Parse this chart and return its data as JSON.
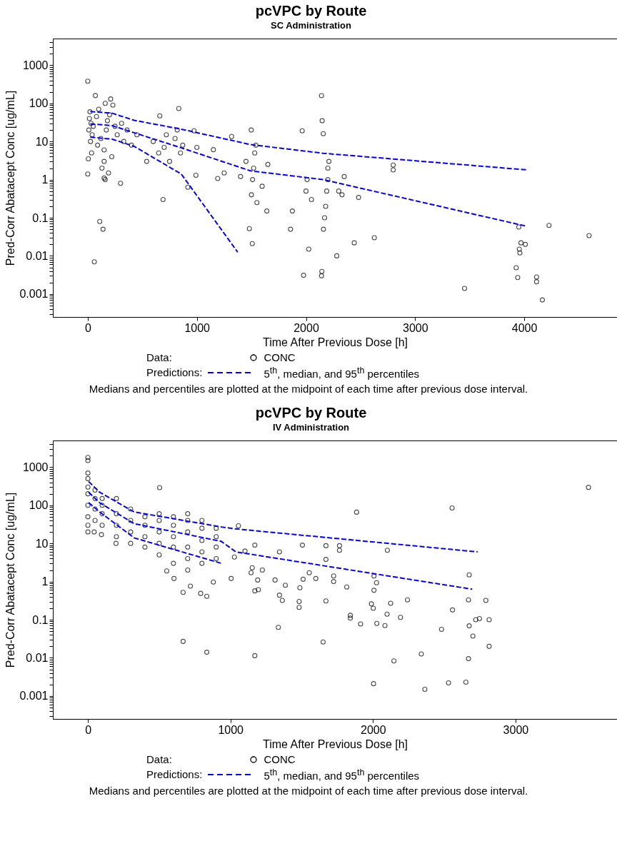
{
  "chart_data": [
    {
      "type": "scatter",
      "title": "pcVPC by Route",
      "subtitle": "SC Administration",
      "xlabel": "Time After Previous Dose [h]",
      "ylabel": "Pred-Corr Abatacept Conc [ug/mL]",
      "log": "y",
      "grid": false,
      "legend": "bottom",
      "xlim": [
        -320,
        4850
      ],
      "xticks": [
        0,
        1000,
        2000,
        3000,
        4000
      ],
      "ylim": [
        0.00025,
        5000
      ],
      "yticks": [
        {
          "value": 0.0003,
          "label": null
        },
        {
          "value": 0.0004,
          "label": null
        },
        {
          "value": 0.0005,
          "label": null
        },
        {
          "value": 0.0006,
          "label": null
        },
        {
          "value": 0.0007,
          "label": null
        },
        {
          "value": 0.0008,
          "label": null
        },
        {
          "value": 0.0009,
          "label": null
        },
        0.001,
        {
          "value": 0.002,
          "label": null
        },
        {
          "value": 0.003,
          "label": null
        },
        {
          "value": 0.004,
          "label": null
        },
        {
          "value": 0.005,
          "label": null
        },
        {
          "value": 0.006,
          "label": null
        },
        {
          "value": 0.007,
          "label": null
        },
        {
          "value": 0.008,
          "label": null
        },
        {
          "value": 0.009,
          "label": null
        },
        0.01,
        {
          "value": 0.02,
          "label": null
        },
        {
          "value": 0.03,
          "label": null
        },
        {
          "value": 0.04,
          "label": null
        },
        {
          "value": 0.05,
          "label": null
        },
        {
          "value": 0.06,
          "label": null
        },
        {
          "value": 0.07,
          "label": null
        },
        {
          "value": 0.08,
          "label": null
        },
        {
          "value": 0.09,
          "label": null
        },
        0.1,
        {
          "value": 0.2,
          "label": null
        },
        {
          "value": 0.3,
          "label": null
        },
        {
          "value": 0.4,
          "label": null
        },
        {
          "value": 0.5,
          "label": null
        },
        {
          "value": 0.6,
          "label": null
        },
        {
          "value": 0.7,
          "label": null
        },
        {
          "value": 0.8,
          "label": null
        },
        {
          "value": 0.9,
          "label": null
        },
        1,
        {
          "value": 2,
          "label": null
        },
        {
          "value": 3,
          "label": null
        },
        {
          "value": 4,
          "label": null
        },
        {
          "value": 5,
          "label": null
        },
        {
          "value": 6,
          "label": null
        },
        {
          "value": 7,
          "label": null
        },
        {
          "value": 8,
          "label": null
        },
        {
          "value": 9,
          "label": null
        },
        10,
        {
          "value": 20,
          "label": null
        },
        {
          "value": 30,
          "label": null
        },
        {
          "value": 40,
          "label": null
        },
        {
          "value": 50,
          "label": null
        },
        {
          "value": 60,
          "label": null
        },
        {
          "value": 70,
          "label": null
        },
        {
          "value": 80,
          "label": null
        },
        {
          "value": 90,
          "label": null
        },
        100,
        {
          "value": 200,
          "label": null
        },
        {
          "value": 300,
          "label": null
        },
        {
          "value": 400,
          "label": null
        },
        {
          "value": 500,
          "label": null
        },
        {
          "value": 600,
          "label": null
        },
        {
          "value": 700,
          "label": null
        },
        {
          "value": 800,
          "label": null
        },
        {
          "value": 900,
          "label": null
        },
        1000,
        {
          "value": 2000,
          "label": null
        },
        {
          "value": 3000,
          "label": null
        },
        {
          "value": 4000,
          "label": null
        }
      ],
      "series": [
        {
          "name": "CONC",
          "marker": "circle",
          "color": "#000000",
          "x": [
            0,
            0,
            5,
            10,
            15,
            20,
            25,
            30,
            35,
            40,
            50,
            60,
            70,
            80,
            90,
            100,
            110,
            120,
            130,
            140,
            150,
            150,
            150,
            160,
            160,
            170,
            180,
            190,
            200,
            210,
            220,
            230,
            250,
            270,
            300,
            310,
            330,
            360,
            400,
            450,
            540,
            600,
            650,
            660,
            690,
            700,
            720,
            750,
            800,
            820,
            834,
            850,
            870,
            917,
            974,
            991,
            1000,
            1151,
            1191,
            1250,
            1318,
            1400,
            1450,
            1481,
            1498,
            1500,
            1510,
            1520,
            1530,
            1540,
            1550,
            1508,
            1598,
            1641,
            1650,
            1858,
            1875,
            1965,
            1978,
            2000,
            2010,
            2025,
            2050,
            2142,
            2142,
            2145,
            2148,
            2158,
            2160,
            2170,
            2180,
            2190,
            2200,
            2200,
            2210,
            2282,
            2300,
            2330,
            2350,
            2442,
            2482,
            2626,
            2799,
            2799,
            3453,
            3926,
            3940,
            3950,
            3955,
            3960,
            3970,
            4010,
            4113,
            4113,
            4166,
            4227,
            4594
          ],
          "values": [
            380,
            1.4,
            3.5,
            20,
            40,
            60,
            10,
            30,
            5,
            15,
            25,
            0.007,
            160,
            45,
            8,
            70,
            0.08,
            12,
            2,
            0.05,
            1.1,
            3,
            6,
            1,
            100,
            20,
            35,
            1.5,
            50,
            130,
            4,
            90,
            25,
            15,
            0.8,
            30,
            10,
            20,
            8,
            15,
            3,
            10,
            5,
            47,
            0.3,
            7,
            15,
            3,
            12,
            20,
            73,
            5,
            8,
            0.63,
            19,
            1.3,
            7,
            6.1,
            1.07,
            1.5,
            13.5,
            1.2,
            3,
            0.052,
            20,
            0.4,
            1,
            2,
            5,
            8,
            0.25,
            0.021,
            0.67,
            0.15,
            2.5,
            0.05,
            0.15,
            19,
            0.0031,
            0.5,
            1,
            0.015,
            0.3,
            159,
            0.003,
            0.0039,
            35,
            16,
            0.05,
            0.1,
            0.2,
            0.5,
            1,
            2,
            3,
            0.01,
            0.5,
            0.4,
            1.2,
            0.022,
            0.34,
            0.03,
            2.4,
            1.8,
            0.0014,
            0.0049,
            0.0027,
            0.057,
            0.015,
            0.012,
            0.022,
            0.02,
            0.0028,
            0.0021,
            0.0007,
            0.063,
            0.034
          ]
        },
        {
          "name": "5$^{th}$, median, and 95$^{th}$ percentiles",
          "type": "line",
          "color": "#0000ff",
          "line_style": "dashed",
          "x": [
            23,
            224,
            424,
            857,
            1491,
            2158,
            4026
          ],
          "values": [
            61,
            55,
            36,
            21,
            8.3,
            4.9,
            1.8
          ]
        },
        {
          "type": "line",
          "color": "#0000ff",
          "line_style": "dashed",
          "x": [
            23,
            224,
            424,
            857,
            1491,
            2158,
            4020
          ],
          "values": [
            29,
            26,
            17,
            6.8,
            1.7,
            1.0,
            0.06
          ]
        },
        {
          "type": "line",
          "color": "#0000ff",
          "line_style": "dashed",
          "x": [
            23,
            224,
            424,
            857,
            1374
          ],
          "values": [
            13,
            11.5,
            7.5,
            1.4,
            0.0125
          ]
        }
      ],
      "annotations": [
        "Data:",
        "Predictions:",
        "Medians and percentiles are plotted at the midpoint of each time after previous dose interval."
      ]
    },
    {
      "type": "scatter",
      "title": "pcVPC by Route",
      "subtitle": "IV Administration",
      "xlabel": "Time After Previous Dose [h]",
      "ylabel": "Pred-Corr Abatacept Conc [ug/mL]",
      "log": "y",
      "grid": false,
      "legend": "bottom",
      "xlim": [
        -246,
        3712
      ],
      "xticks": [
        0,
        1000,
        2000,
        3000
      ],
      "ylim": [
        0.00025,
        5000
      ],
      "yticks": [
        {
          "value": 0.0003,
          "label": null
        },
        {
          "value": 0.0004,
          "label": null
        },
        {
          "value": 0.0005,
          "label": null
        },
        {
          "value": 0.0006,
          "label": null
        },
        {
          "value": 0.0007,
          "label": null
        },
        {
          "value": 0.0008,
          "label": null
        },
        {
          "value": 0.0009,
          "label": null
        },
        0.001,
        {
          "value": 0.002,
          "label": null
        },
        {
          "value": 0.003,
          "label": null
        },
        {
          "value": 0.004,
          "label": null
        },
        {
          "value": 0.005,
          "label": null
        },
        {
          "value": 0.006,
          "label": null
        },
        {
          "value": 0.007,
          "label": null
        },
        {
          "value": 0.008,
          "label": null
        },
        {
          "value": 0.009,
          "label": null
        },
        0.01,
        {
          "value": 0.02,
          "label": null
        },
        {
          "value": 0.03,
          "label": null
        },
        {
          "value": 0.04,
          "label": null
        },
        {
          "value": 0.05,
          "label": null
        },
        {
          "value": 0.06,
          "label": null
        },
        {
          "value": 0.07,
          "label": null
        },
        {
          "value": 0.08,
          "label": null
        },
        {
          "value": 0.09,
          "label": null
        },
        0.1,
        {
          "value": 0.2,
          "label": null
        },
        {
          "value": 0.3,
          "label": null
        },
        {
          "value": 0.4,
          "label": null
        },
        {
          "value": 0.5,
          "label": null
        },
        {
          "value": 0.6,
          "label": null
        },
        {
          "value": 0.7,
          "label": null
        },
        {
          "value": 0.8,
          "label": null
        },
        {
          "value": 0.9,
          "label": null
        },
        1,
        {
          "value": 2,
          "label": null
        },
        {
          "value": 3,
          "label": null
        },
        {
          "value": 4,
          "label": null
        },
        {
          "value": 5,
          "label": null
        },
        {
          "value": 6,
          "label": null
        },
        {
          "value": 7,
          "label": null
        },
        {
          "value": 8,
          "label": null
        },
        {
          "value": 9,
          "label": null
        },
        10,
        {
          "value": 20,
          "label": null
        },
        {
          "value": 30,
          "label": null
        },
        {
          "value": 40,
          "label": null
        },
        {
          "value": 50,
          "label": null
        },
        {
          "value": 60,
          "label": null
        },
        {
          "value": 70,
          "label": null
        },
        {
          "value": 80,
          "label": null
        },
        {
          "value": 90,
          "label": null
        },
        100,
        {
          "value": 200,
          "label": null
        },
        {
          "value": 300,
          "label": null
        },
        {
          "value": 400,
          "label": null
        },
        {
          "value": 500,
          "label": null
        },
        {
          "value": 600,
          "label": null
        },
        {
          "value": 700,
          "label": null
        },
        {
          "value": 800,
          "label": null
        },
        {
          "value": 900,
          "label": null
        },
        1000,
        {
          "value": 2000,
          "label": null
        },
        {
          "value": 3000,
          "label": null
        },
        {
          "value": 4000,
          "label": null
        }
      ],
      "series": [
        {
          "name": "CONC",
          "marker": "circle",
          "color": "#000000",
          "x": [
            0,
            0,
            0,
            0,
            0,
            0,
            0,
            0,
            0,
            0,
            44,
            50,
            50,
            50,
            50,
            95,
            100,
            100,
            100,
            100,
            197,
            200,
            200,
            200,
            200,
            300,
            300,
            300,
            300,
            400,
            400,
            400,
            400,
            500,
            500,
            500,
            500,
            500,
            503,
            553,
            600,
            600,
            600,
            600,
            600,
            604,
            668,
            668,
            700,
            700,
            700,
            700,
            700,
            700,
            719,
            791,
            800,
            800,
            800,
            800,
            800,
            834,
            834,
            880,
            900,
            900,
            900,
            900,
            1005,
            1028,
            1056,
            1102,
            1145,
            1153,
            1171,
            1171,
            1171,
            1191,
            1196,
            1224,
            1313,
            1336,
            1344,
            1344,
            1364,
            1385,
            1482,
            1482,
            1487,
            1505,
            1510,
            1553,
            1599,
            1650,
            1670,
            1670,
            1670,
            1724,
            1724,
            1765,
            1765,
            1816,
            1841,
            1841,
            1885,
            1913,
            1989,
            2002,
            2004,
            2007,
            2007,
            2025,
            2027,
            2084,
            2099,
            2101,
            2124,
            2147,
            2193,
            2242,
            2339,
            2364,
            2481,
            2530,
            2555,
            2558,
            2652,
            2670,
            2670,
            2675,
            2675,
            2701,
            2721,
            2747,
            2792,
            2815,
            2815,
            3512
          ],
          "values": [
            1800,
            1500,
            700,
            500,
            300,
            200,
            100,
            50,
            30,
            20,
            20,
            40,
            80,
            150,
            250,
            17,
            30,
            60,
            100,
            150,
            10,
            15,
            30,
            60,
            150,
            10,
            20,
            40,
            80,
            8,
            15,
            30,
            50,
            5,
            10,
            20,
            40,
            60,
            290,
            1.9,
            3,
            8,
            15,
            30,
            50,
            1.2,
            0.52,
            0.027,
            2,
            4,
            8,
            20,
            40,
            60,
            0.76,
            0.49,
            3,
            6,
            12,
            25,
            40,
            0.41,
            0.014,
            0.97,
            4,
            8,
            15,
            25,
            1.2,
            4.4,
            29,
            6.3,
            1.7,
            2.3,
            0.57,
            9,
            0.0114,
            1.1,
            0.61,
            2,
            1.1,
            0.063,
            6,
            0.44,
            0.32,
            0.8,
            0.3,
            0.21,
            0.69,
            9,
            1.15,
            1.7,
            1.2,
            0.026,
            8.7,
            3.8,
            0.31,
            1.4,
            1,
            8.7,
            6.6,
            0.72,
            0.13,
            0.11,
            66,
            0.077,
            0.26,
            0.2,
            0.0021,
            0.59,
            1.4,
            0.93,
            0.08,
            0.07,
            0.14,
            6.6,
            0.27,
            0.0083,
            0.115,
            0.33,
            0.0126,
            0.0015,
            0.056,
            0.0022,
            85,
            0.18,
            0.0023,
            0.0095,
            0.33,
            1.5,
            0.069,
            0.037,
            0.1,
            0.107,
            0.32,
            0.1,
            0.02,
            295
          ]
        },
        {
          "name": "5$^{th}$, median, and 95$^{th}$ percentiles",
          "type": "line",
          "color": "#0000ff",
          "line_style": "dashed",
          "x": [
            5,
            82,
            324,
            936,
            1038,
            2734
          ],
          "values": [
            420,
            220,
            67,
            27,
            24,
            6.0
          ]
        },
        {
          "type": "line",
          "color": "#0000ff",
          "line_style": "dashed",
          "x": [
            5,
            82,
            324,
            936,
            1038,
            2696
          ],
          "values": [
            220,
            117,
            33,
            11.3,
            6,
            0.63
          ]
        },
        {
          "type": "line",
          "color": "#0000ff",
          "line_style": "dashed",
          "x": [
            5,
            82,
            324,
            936
          ],
          "values": [
            117,
            67,
            14,
            3.0
          ]
        }
      ],
      "annotations": [
        "Data:",
        "Predictions:",
        "Medians and percentiles are plotted at the midpoint of each time after previous dose interval."
      ]
    }
  ]
}
